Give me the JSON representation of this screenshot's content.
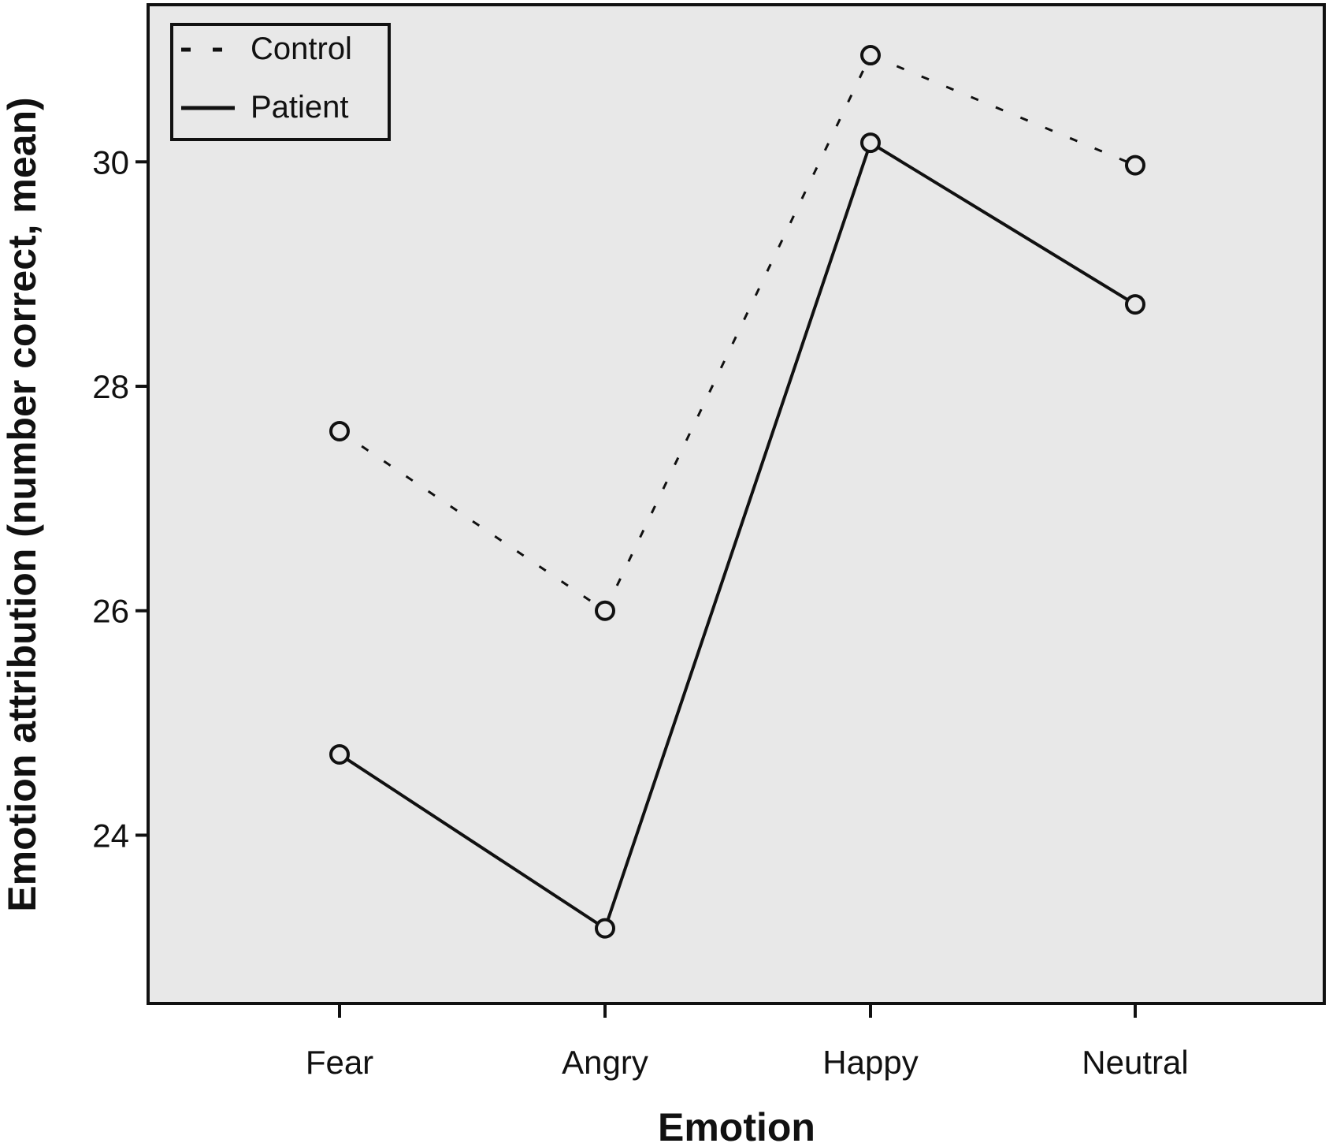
{
  "chart_data": {
    "type": "line",
    "title": "",
    "xlabel": "Emotion",
    "ylabel": "Emotion attribution (number correct, mean)",
    "categories": [
      "Fear",
      "Angry",
      "Happy",
      "Neutral"
    ],
    "y_ticks": [
      "24",
      "26",
      "28",
      "30"
    ],
    "ylim": [
      22.5,
      31.4
    ],
    "grid": false,
    "legend_position": "top-left",
    "series": [
      {
        "name": "Control",
        "style": "dashed",
        "values": [
          27.6,
          26.0,
          30.95,
          29.97
        ]
      },
      {
        "name": "Patient",
        "style": "solid",
        "values": [
          24.72,
          23.17,
          30.17,
          28.73
        ]
      }
    ],
    "colors": {
      "plot_background": "#e8e8e8",
      "line": "#111111",
      "frame": "#111111"
    }
  }
}
